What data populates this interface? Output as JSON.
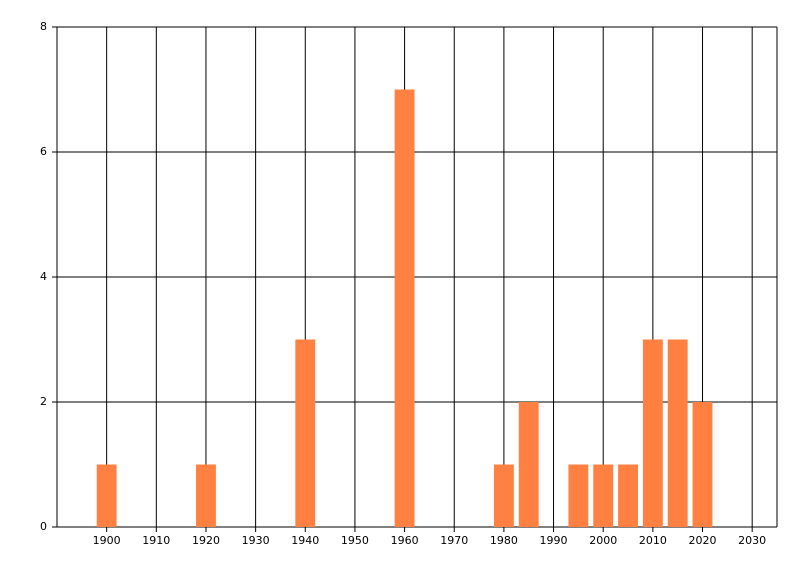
{
  "chart_data": {
    "type": "bar",
    "x": [
      1900,
      1920,
      1940,
      1960,
      1980,
      1985,
      1995,
      2000,
      2005,
      2010,
      2015,
      2020
    ],
    "values": [
      1,
      1,
      3,
      7,
      1,
      2,
      1,
      1,
      1,
      3,
      3,
      2
    ],
    "color": "#ff8040",
    "xlim": [
      1890,
      2035
    ],
    "xticks": [
      1900,
      1910,
      1920,
      1930,
      1940,
      1950,
      1960,
      1970,
      1980,
      1990,
      2000,
      2010,
      2020,
      2030
    ],
    "ylim": [
      0,
      8
    ],
    "yticks": [
      0,
      2,
      4,
      6,
      8
    ],
    "grid": true
  }
}
